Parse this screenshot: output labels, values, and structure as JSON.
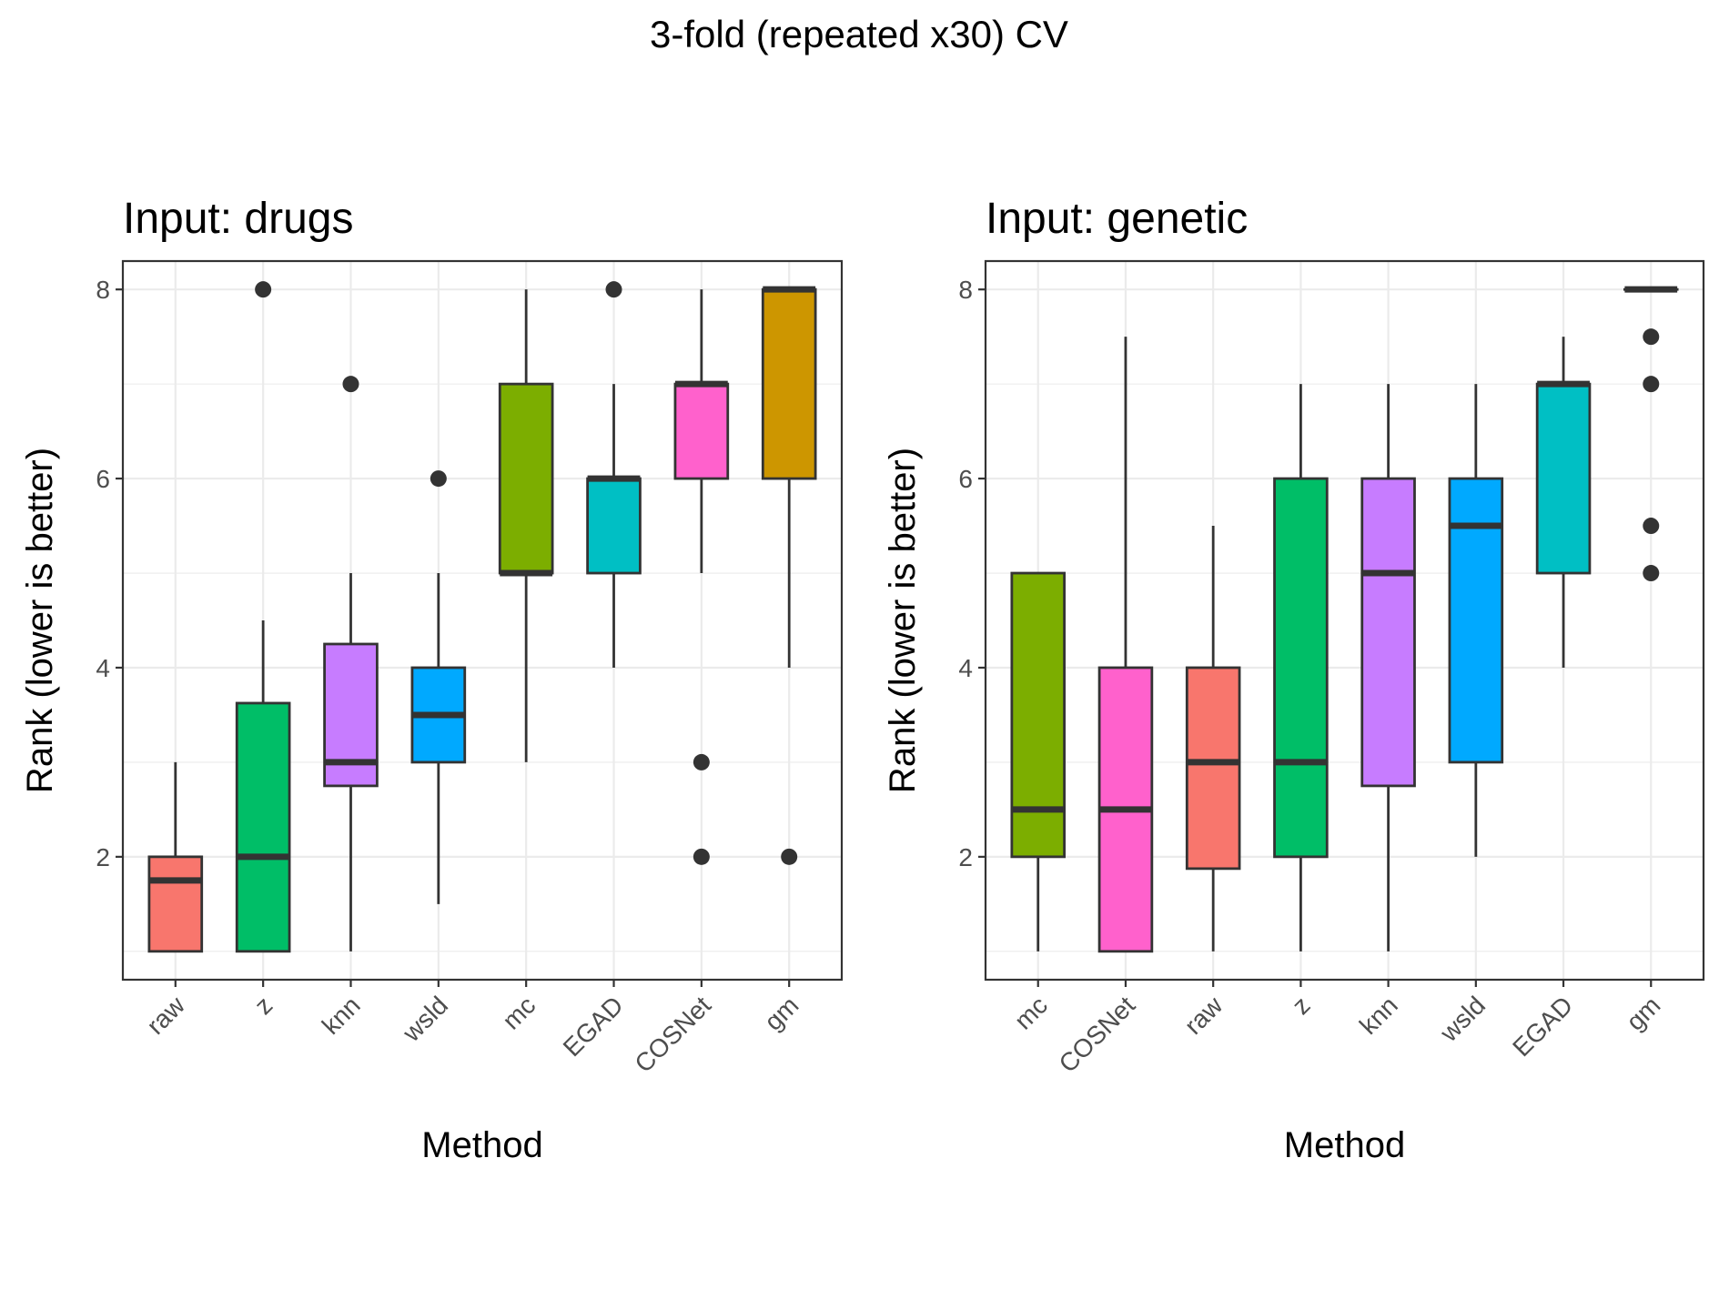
{
  "figure": {
    "title": "3-fold (repeated x30) CV"
  },
  "chart_data": [
    {
      "type": "box",
      "title": "Input: drugs",
      "xlabel": "Method",
      "ylabel": "Rank (lower is better)",
      "ylim": [
        0.7,
        8.3
      ],
      "yticks": [
        2,
        4,
        6,
        8
      ],
      "grid": true,
      "categories": [
        "raw",
        "z",
        "knn",
        "wsld",
        "mc",
        "EGAD",
        "COSNet",
        "gm"
      ],
      "series": [
        {
          "category": "raw",
          "color": "#F8766D",
          "whisker_low": 1,
          "q1": 1,
          "median": 1.75,
          "q3": 2,
          "whisker_high": 3,
          "outliers": []
        },
        {
          "category": "z",
          "color": "#00BE67",
          "whisker_low": 1,
          "q1": 1,
          "median": 2,
          "q3": 3.625,
          "whisker_high": 4.5,
          "outliers": [
            8
          ]
        },
        {
          "category": "knn",
          "color": "#C77CFF",
          "whisker_low": 1,
          "q1": 2.75,
          "median": 3,
          "q3": 4.25,
          "whisker_high": 5,
          "outliers": [
            7
          ]
        },
        {
          "category": "wsld",
          "color": "#00A9FF",
          "whisker_low": 1.5,
          "q1": 3,
          "median": 3.5,
          "q3": 4,
          "whisker_high": 5,
          "outliers": [
            6
          ]
        },
        {
          "category": "mc",
          "color": "#7CAE00",
          "whisker_low": 3,
          "q1": 5,
          "median": 5,
          "q3": 7,
          "whisker_high": 8,
          "outliers": []
        },
        {
          "category": "EGAD",
          "color": "#00BFC4",
          "whisker_low": 4,
          "q1": 5,
          "median": 6,
          "q3": 6,
          "whisker_high": 7,
          "outliers": [
            8
          ]
        },
        {
          "category": "COSNet",
          "color": "#FF61CC",
          "whisker_low": 5,
          "q1": 6,
          "median": 7,
          "q3": 7,
          "whisker_high": 8,
          "outliers": [
            3,
            2
          ]
        },
        {
          "category": "gm",
          "color": "#CD9600",
          "whisker_low": 4,
          "q1": 6,
          "median": 8,
          "q3": 8,
          "whisker_high": 8,
          "outliers": [
            2
          ]
        }
      ]
    },
    {
      "type": "box",
      "title": "Input: genetic",
      "xlabel": "Method",
      "ylabel": "Rank (lower is better)",
      "ylim": [
        0.7,
        8.3
      ],
      "yticks": [
        2,
        4,
        6,
        8
      ],
      "grid": true,
      "categories": [
        "mc",
        "COSNet",
        "raw",
        "z",
        "knn",
        "wsld",
        "EGAD",
        "gm"
      ],
      "series": [
        {
          "category": "mc",
          "color": "#7CAE00",
          "whisker_low": 1,
          "q1": 2,
          "median": 2.5,
          "q3": 5,
          "whisker_high": 5,
          "outliers": []
        },
        {
          "category": "COSNet",
          "color": "#FF61CC",
          "whisker_low": 1,
          "q1": 1,
          "median": 2.5,
          "q3": 4,
          "whisker_high": 7.5,
          "outliers": []
        },
        {
          "category": "raw",
          "color": "#F8766D",
          "whisker_low": 1,
          "q1": 1.875,
          "median": 3,
          "q3": 4,
          "whisker_high": 5.5,
          "outliers": []
        },
        {
          "category": "z",
          "color": "#00BE67",
          "whisker_low": 1,
          "q1": 2,
          "median": 3,
          "q3": 6,
          "whisker_high": 7,
          "outliers": []
        },
        {
          "category": "knn",
          "color": "#C77CFF",
          "whisker_low": 1,
          "q1": 2.75,
          "median": 5,
          "q3": 6,
          "whisker_high": 7,
          "outliers": []
        },
        {
          "category": "wsld",
          "color": "#00A9FF",
          "whisker_low": 2,
          "q1": 3,
          "median": 5.5,
          "q3": 6,
          "whisker_high": 7,
          "outliers": []
        },
        {
          "category": "EGAD",
          "color": "#00BFC4",
          "whisker_low": 4,
          "q1": 5,
          "median": 7,
          "q3": 7,
          "whisker_high": 7.5,
          "outliers": []
        },
        {
          "category": "gm",
          "color": "#CD9600",
          "whisker_low": 8,
          "q1": 8,
          "median": 8,
          "q3": 8,
          "whisker_high": 8,
          "outliers": [
            7.5,
            7,
            5.5,
            5
          ]
        }
      ]
    }
  ]
}
